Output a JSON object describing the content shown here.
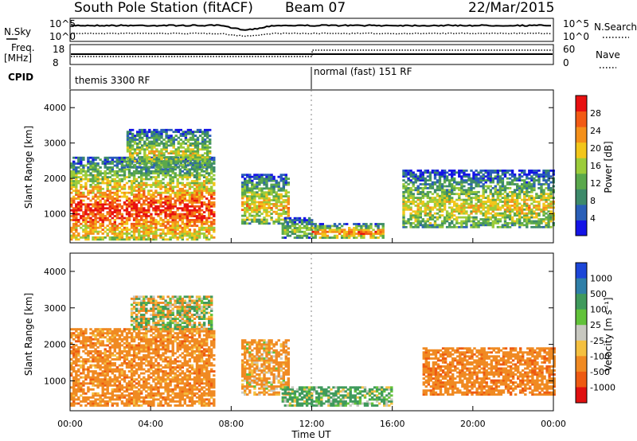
{
  "header": {
    "station": "South Pole Station (fitACF)",
    "beam": "Beam 07",
    "date": "22/Mar/2015"
  },
  "left_labels": {
    "nsky": "N.Sky",
    "freq_line1": "Freq.",
    "freq_line2": "[MHz]",
    "cpid": "CPID"
  },
  "right_labels": {
    "nsearch": "N.Search",
    "nave": "Nave"
  },
  "noise_axis": {
    "top": "10^5",
    "bottom": "10^0"
  },
  "freq_axis": {
    "top": "18",
    "bottom": "8"
  },
  "nave_axis": {
    "top": "60",
    "bottom": "0"
  },
  "cpid_modes": [
    {
      "label": "themis 3300 RF",
      "start_hour": 0,
      "end_hour": 12
    },
    {
      "label": "normal (fast) 151 RF",
      "start_hour": 12,
      "end_hour": 24
    }
  ],
  "x_axis": {
    "label": "Time UT",
    "ticks": [
      "00:00",
      "04:00",
      "08:00",
      "12:00",
      "16:00",
      "20:00",
      "00:00"
    ],
    "range_hours": [
      0,
      24
    ]
  },
  "y_axis": {
    "label": "Slant Range [km]",
    "ticks": [
      "1000",
      "2000",
      "3000",
      "4000"
    ],
    "range_km": [
      180,
      4500
    ]
  },
  "power_colorbar": {
    "label": "Power [dB]",
    "ticks": [
      "4",
      "8",
      "12",
      "16",
      "20",
      "24",
      "28"
    ],
    "colors": [
      "#1414e6",
      "#2a5fb8",
      "#3d8a6a",
      "#5aa84c",
      "#9ccc3a",
      "#f2c61a",
      "#f4901a",
      "#f25a14",
      "#e81010"
    ]
  },
  "velocity_colorbar": {
    "label": "Velocity [m s⁻¹]",
    "ticks": [
      "1000",
      "500",
      "100",
      "25",
      "-25",
      "-100",
      "-500",
      "-1000"
    ],
    "colors": [
      "#1c46d8",
      "#2f7fa8",
      "#3f9a5c",
      "#62c23a",
      "#c8c8c0",
      "#f4c040",
      "#f08a22",
      "#ee5a12",
      "#e01010"
    ]
  },
  "chart_data": {
    "type": "heatmap",
    "panels": [
      {
        "name": "Power",
        "units": "dB",
        "color_range": [
          0,
          32
        ],
        "echo_regions": [
          {
            "t0": 0.0,
            "t1": 7.2,
            "r0": 250,
            "r1": 2600,
            "peak": 30
          },
          {
            "t0": 2.8,
            "t1": 7.0,
            "r0": 2300,
            "r1": 3400,
            "peak": 18
          },
          {
            "t0": 8.5,
            "t1": 10.8,
            "r0": 700,
            "r1": 2100,
            "peak": 22
          },
          {
            "t0": 10.5,
            "t1": 12.0,
            "r0": 300,
            "r1": 900,
            "peak": 16
          },
          {
            "t0": 12.0,
            "t1": 15.5,
            "r0": 300,
            "r1": 700,
            "peak": 26
          },
          {
            "t0": 16.5,
            "t1": 24.0,
            "r0": 600,
            "r1": 2200,
            "peak": 20
          }
        ]
      },
      {
        "name": "Velocity",
        "units": "m s-1",
        "color_range": [
          -1000,
          1000
        ],
        "echo_regions": [
          {
            "t0": 0.0,
            "t1": 7.2,
            "r0": 300,
            "r1": 2400,
            "mean_velocity": -300
          },
          {
            "t0": 3.0,
            "t1": 7.0,
            "r0": 2400,
            "r1": 3300,
            "mean_velocity": 0
          },
          {
            "t0": 8.5,
            "t1": 10.8,
            "r0": 600,
            "r1": 2100,
            "mean_velocity": -200
          },
          {
            "t0": 10.5,
            "t1": 16.0,
            "r0": 300,
            "r1": 800,
            "mean_velocity": 150
          },
          {
            "t0": 17.5,
            "t1": 24.0,
            "r0": 600,
            "r1": 1900,
            "mean_velocity": -350
          }
        ]
      }
    ]
  }
}
